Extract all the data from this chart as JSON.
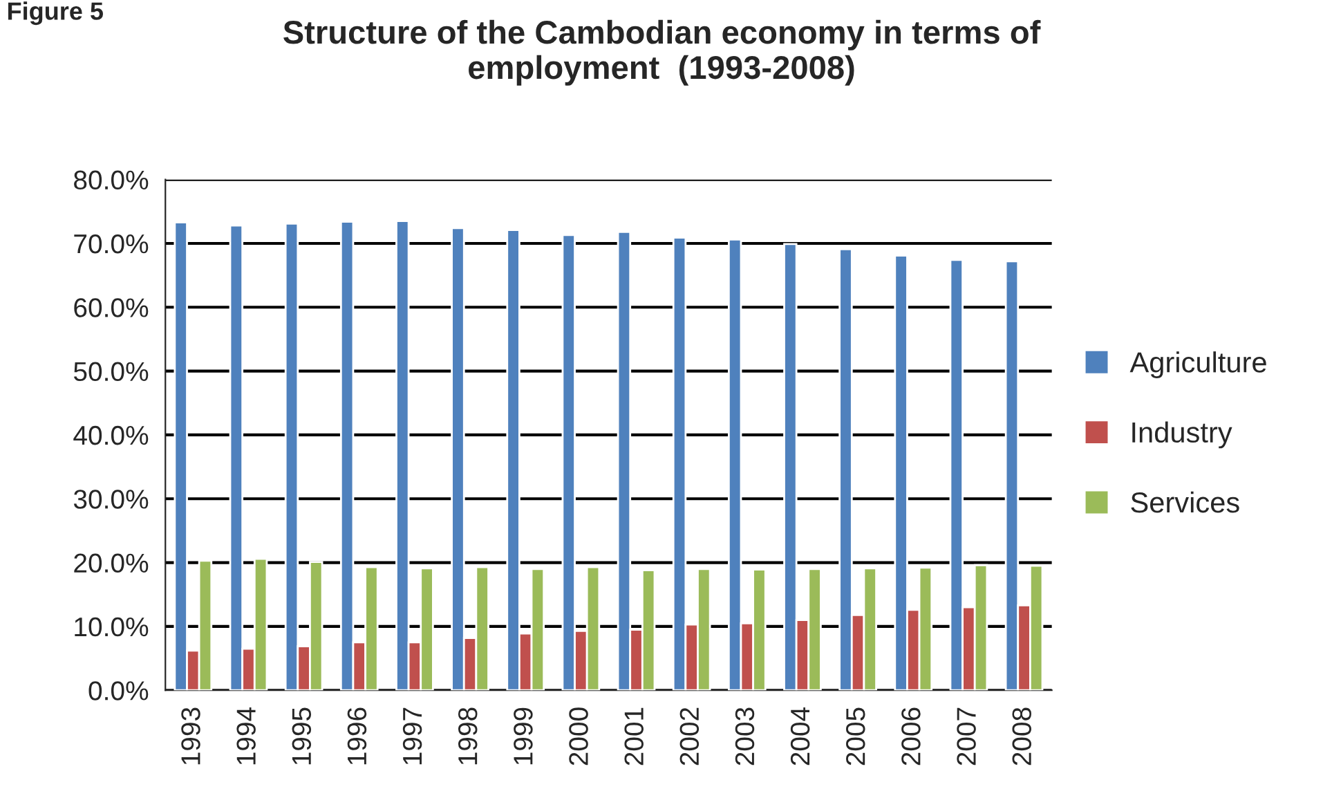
{
  "chart_data": {
    "type": "bar",
    "title": "Structure of the Cambodian economy in terms of\nemployment  (1993-2008)",
    "annotations": [
      "Figure 5"
    ],
    "categories": [
      "1993",
      "1994",
      "1995",
      "1996",
      "1997",
      "1998",
      "1999",
      "2000",
      "2001",
      "2002",
      "2003",
      "2004",
      "2005",
      "2006",
      "2007",
      "2008"
    ],
    "series": [
      {
        "name": "Agriculture",
        "color": "#4f81bd",
        "values": [
          73.3,
          72.8,
          73.1,
          73.4,
          73.5,
          72.4,
          72.1,
          71.3,
          71.8,
          70.9,
          70.6,
          69.9,
          69.1,
          68.1,
          67.4,
          67.2
        ]
      },
      {
        "name": "Industry",
        "color": "#c0504d",
        "values": [
          6.2,
          6.5,
          6.9,
          7.5,
          7.5,
          8.2,
          8.9,
          9.3,
          9.5,
          10.3,
          10.5,
          11.0,
          11.8,
          12.6,
          13.0,
          13.3
        ]
      },
      {
        "name": "Services",
        "color": "#9bbb59",
        "values": [
          20.3,
          20.6,
          20.1,
          19.3,
          19.1,
          19.3,
          19.0,
          19.3,
          18.8,
          19.0,
          18.9,
          19.0,
          19.1,
          19.2,
          19.6,
          19.5
        ]
      }
    ],
    "ylim": [
      0,
      80
    ],
    "yticks": [
      {
        "value": 0,
        "label": "0.0%"
      },
      {
        "value": 10,
        "label": "10.0%"
      },
      {
        "value": 20,
        "label": "20.0%"
      },
      {
        "value": 30,
        "label": "30.0%"
      },
      {
        "value": 40,
        "label": "40.0%"
      },
      {
        "value": 50,
        "label": "50.0%"
      },
      {
        "value": 60,
        "label": "60.0%"
      },
      {
        "value": 70,
        "label": "70.0%"
      },
      {
        "value": 80,
        "label": "80.0%"
      }
    ],
    "grid": "y",
    "legend": "right"
  }
}
